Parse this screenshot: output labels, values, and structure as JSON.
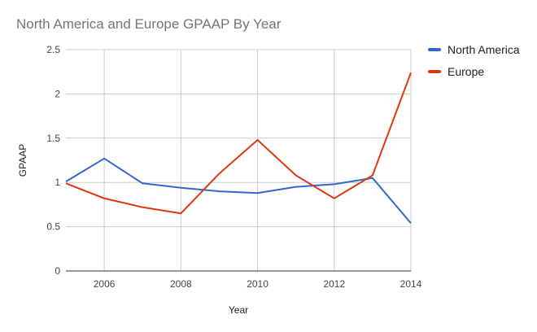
{
  "chart_data": {
    "type": "line",
    "title": "North America and Europe GPAAP By Year",
    "xlabel": "Year",
    "ylabel": "GPAAP",
    "x": [
      2005,
      2006,
      2007,
      2008,
      2009,
      2010,
      2011,
      2012,
      2013,
      2014
    ],
    "xlim": [
      2005,
      2014
    ],
    "xticks": [
      "2006",
      "2008",
      "2010",
      "2012",
      "2014"
    ],
    "ylim": [
      0,
      2.5
    ],
    "yticks": [
      "0",
      "0.5",
      "1",
      "1.5",
      "2",
      "2.5"
    ],
    "grid": true,
    "legend_position": "right",
    "series": [
      {
        "name": "North America",
        "color": "#3366cc",
        "values": [
          1.01,
          1.27,
          0.99,
          0.94,
          0.9,
          0.88,
          0.95,
          0.98,
          1.05,
          0.54
        ]
      },
      {
        "name": "Europe",
        "color": "#dc3912",
        "values": [
          0.99,
          0.82,
          0.72,
          0.65,
          1.1,
          1.48,
          1.08,
          0.82,
          1.08,
          2.24
        ]
      }
    ]
  }
}
